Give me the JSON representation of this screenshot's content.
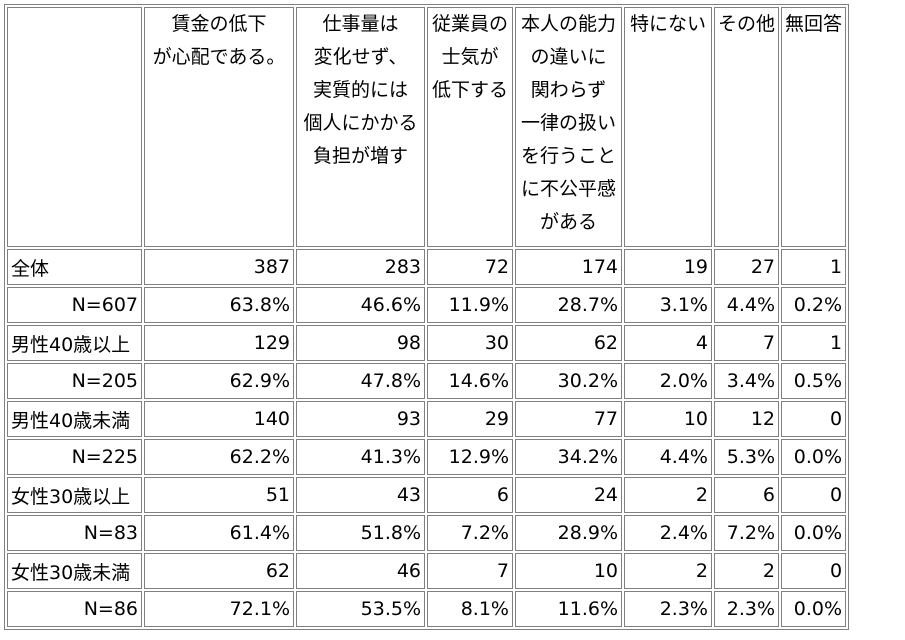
{
  "header": {
    "columns": [
      {
        "lines": [
          "",
          ""
        ]
      },
      {
        "lines": [
          "賃金の低下",
          "が心配である。"
        ]
      },
      {
        "lines": [
          "仕事量は",
          "変化せず、",
          "実質的には",
          "個人にかかる",
          "負担が増す"
        ]
      },
      {
        "lines": [
          "従業員の",
          "士気が",
          "低下する"
        ]
      },
      {
        "lines": [
          "本人の能力",
          "の違いに",
          "関わらず",
          "一律の扱い",
          "を行うこと",
          "に不公平感",
          "がある"
        ]
      },
      {
        "lines": [
          "特にない"
        ]
      },
      {
        "lines": [
          "その他"
        ]
      },
      {
        "lines": [
          "無回答"
        ]
      }
    ]
  },
  "groups": [
    {
      "label": "全体",
      "n": "N=607",
      "counts": [
        "387",
        "283",
        "72",
        "174",
        "19",
        "27",
        "1"
      ],
      "pcts": [
        "63.8%",
        "46.6%",
        "11.9%",
        "28.7%",
        "3.1%",
        "4.4%",
        "0.2%"
      ]
    },
    {
      "label": "男性40歳以上",
      "n": "N=205",
      "counts": [
        "129",
        "98",
        "30",
        "62",
        "4",
        "7",
        "1"
      ],
      "pcts": [
        "62.9%",
        "47.8%",
        "14.6%",
        "30.2%",
        "2.0%",
        "3.4%",
        "0.5%"
      ]
    },
    {
      "label": "男性40歳未満",
      "n": "N=225",
      "counts": [
        "140",
        "93",
        "29",
        "77",
        "10",
        "12",
        "0"
      ],
      "pcts": [
        "62.2%",
        "41.3%",
        "12.9%",
        "34.2%",
        "4.4%",
        "5.3%",
        "0.0%"
      ]
    },
    {
      "label": "女性30歳以上",
      "n": "N=83",
      "counts": [
        "51",
        "43",
        "6",
        "24",
        "2",
        "6",
        "0"
      ],
      "pcts": [
        "61.4%",
        "51.8%",
        "7.2%",
        "28.9%",
        "2.4%",
        "7.2%",
        "0.0%"
      ]
    },
    {
      "label": "女性30歳未満",
      "n": "N=86",
      "counts": [
        "62",
        "46",
        "7",
        "10",
        "2",
        "2",
        "0"
      ],
      "pcts": [
        "72.1%",
        "53.5%",
        "8.1%",
        "11.6%",
        "2.3%",
        "2.3%",
        "0.0%"
      ]
    }
  ]
}
